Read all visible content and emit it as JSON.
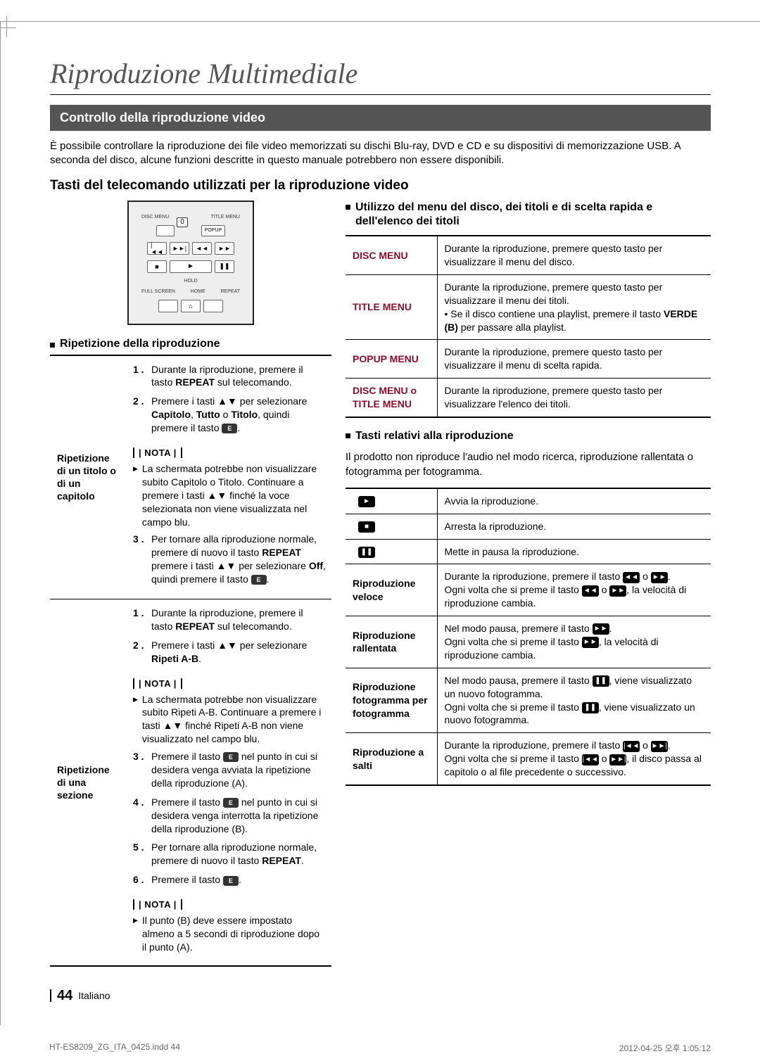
{
  "page": {
    "title": "Riproduzione Multimediale",
    "section_bar": "Controllo della riproduzione video",
    "intro": "È possibile controllare la riproduzione dei file video memorizzati su dischi Blu-ray, DVD e CD e su dispositivi di memorizzazione USB. A seconda del disco, alcune funzioni descritte in questo manuale potrebbero non essere disponibili.",
    "subhead": "Tasti del telecomando utilizzati per la riproduzione video"
  },
  "remote": {
    "top_labels": {
      "left": "DISC MENU",
      "right": "TITLE MENU"
    },
    "popup_label": "POPUP",
    "num": "0",
    "row2": [
      "|◄◄",
      "►►|",
      "◄◄",
      "►►"
    ],
    "row3": {
      "stop": "■",
      "play": "►",
      "pause": "❚❚"
    },
    "row4_label": "HOLD",
    "bottom_labels": {
      "left": "FULL SCREEN",
      "mid": "HOME",
      "right": "REPEAT"
    },
    "home_icon": "⌂"
  },
  "repeat_section": {
    "title": "Ripetizione della riproduzione",
    "rows": [
      {
        "label": "Ripetizione di un titolo o di un capitolo",
        "steps": [
          "Durante la riproduzione, premere il tasto <b>REPEAT</b> sul telecomando.",
          "Premere i tasti ▲▼ per selezionare <b>Capitolo</b>, <b>Tutto</b> o <b>Titolo</b>, quindi premere il tasto <span class='icon-e'>E</span>."
        ],
        "nota": "NOTA",
        "notes": [
          "La schermata potrebbe non visualizzare subito Capitolo o Titolo. Continuare a premere i tasti ▲▼ finché la voce selezionata non viene visualizzata nel campo blu."
        ],
        "steps2": [
          "Per tornare alla riproduzione normale, premere di nuovo il tasto <b>REPEAT</b> premere i tasti ▲▼ per selezionare <b>Off</b>, quindi premere il tasto <span class='icon-e'>E</span>."
        ]
      },
      {
        "label": "Ripetizione di una sezione",
        "steps": [
          "Durante la riproduzione, premere il tasto <b>REPEAT</b> sul telecomando.",
          "Premere i tasti ▲▼ per selezionare <b>Ripeti A-B</b>."
        ],
        "nota": "NOTA",
        "notes": [
          "La schermata potrebbe non visualizzare subito Ripeti A-B. Continuare a premere i tasti ▲▼ finché Ripeti A-B non viene visualizzato nel campo blu."
        ],
        "steps2": [
          "Premere il tasto <span class='icon-e'>E</span> nel punto in cui si desidera venga avviata la ripetizione della riproduzione (A).",
          "Premere il tasto <span class='icon-e'>E</span> nel punto in cui si desidera venga interrotta la ripetizione della riproduzione (B).",
          "Per tornare alla riproduzione normale, premere di nuovo il tasto <b>REPEAT</b>.",
          "Premere il tasto <span class='icon-e'>E</span>."
        ],
        "nota2": "NOTA",
        "notes2": [
          "Il punto (B) deve essere impostato almeno a 5 secondi di riproduzione dopo il punto (A)."
        ]
      }
    ]
  },
  "right_col": {
    "menu_heading": "Utilizzo del menu del disco, dei titoli e di scelta rapida e dell'elenco dei titoli",
    "menu_table": [
      {
        "k": "DISC MENU",
        "v": "Durante la riproduzione, premere questo tasto per visualizzare il menu del disco."
      },
      {
        "k": "TITLE MENU",
        "v": "Durante la riproduzione, premere questo tasto per visualizzare il menu dei titoli.<br>• Se il disco contiene una playlist, premere il tasto <b>VERDE (B)</b> per passare alla playlist."
      },
      {
        "k": "POPUP MENU",
        "v": "Durante la riproduzione, premere questo tasto per visualizzare il menu di scelta rapida."
      },
      {
        "k": "DISC MENU o TITLE MENU",
        "v": "Durante la riproduzione, premere questo tasto per visualizzare l'elenco dei titoli."
      }
    ],
    "play_heading": "Tasti relativi alla riproduzione",
    "play_desc": "Il prodotto non riproduce l'audio nel modo ricerca, riproduzione rallentata o fotogramma per fotogramma.",
    "play_table": [
      {
        "icon": "6",
        "sym": "►",
        "v": "Avvia la riproduzione."
      },
      {
        "icon": "5",
        "sym": "■",
        "v": "Arresta la riproduzione."
      },
      {
        "icon": "7",
        "sym": "❚❚",
        "v": "Mette in pausa la riproduzione."
      },
      {
        "k": "Riproduzione veloce",
        "v": "Durante la riproduzione, premere il tasto <span class='icon-6'>◄◄</span> o <span class='icon-6'>►►</span>.<br>Ogni volta che si preme il tasto <span class='icon-6'>◄◄</span> o <span class='icon-6'>►►</span>, la velocità di riproduzione cambia."
      },
      {
        "k": "Riproduzione rallentata",
        "v": "Nel modo pausa, premere il tasto <span class='icon-6'>►►</span>.<br>Ogni volta che si preme il tasto <span class='icon-6'>►►</span>, la velocità di riproduzione cambia."
      },
      {
        "k": "Riproduzione fotogramma per fotogramma",
        "v": "Nel modo pausa, premere il tasto <span class='icon-6'>❚❚</span>, viene visualizzato un nuovo fotogramma.<br>Ogni volta che si preme il tasto <span class='icon-6'>❚❚</span>, viene visualizzato un nuovo fotogramma."
      },
      {
        "k": "Riproduzione a salti",
        "v": "Durante la riproduzione, premere il tasto <span class='icon-6'>|◄◄</span> o <span class='icon-6'>►►|</span>.<br>Ogni volta che si preme il tasto <span class='icon-6'>|◄◄</span> o <span class='icon-6'>►►|</span>, il disco passa al capitolo o al file precedente o successivo."
      }
    ]
  },
  "footer": {
    "pagenum": "44",
    "lang": "Italiano"
  },
  "meta": {
    "left": "HT-ES8209_ZG_ITA_0425.indd   44",
    "right": "2012-04-25   오후 1:05:12"
  }
}
